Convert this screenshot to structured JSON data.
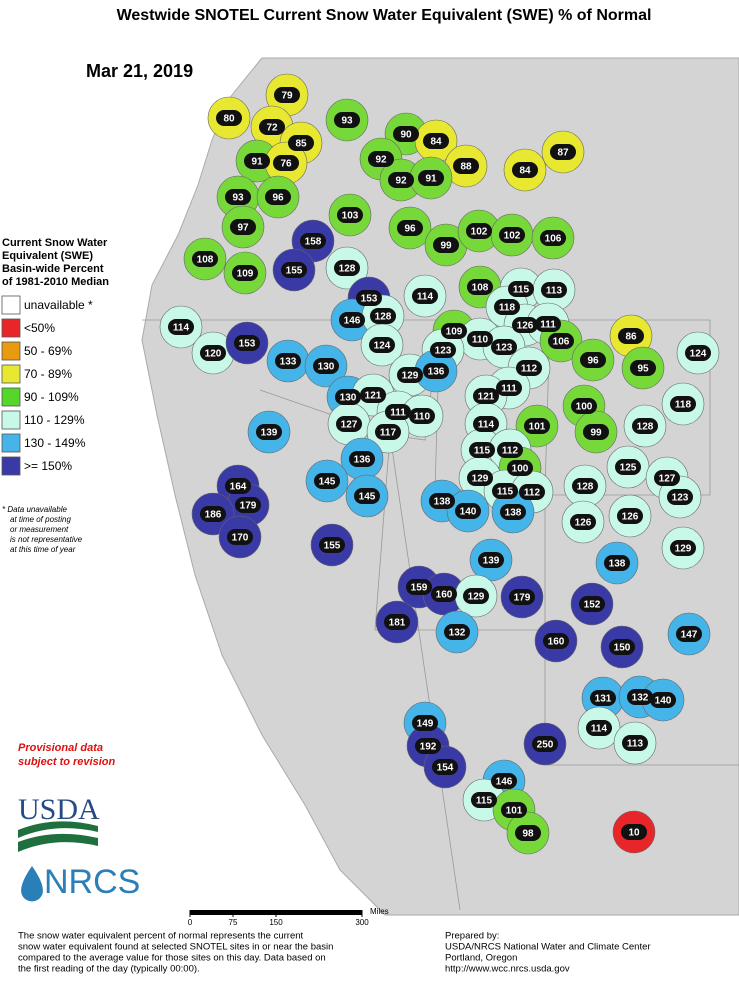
{
  "title": "Westwide SNOTEL Current Snow Water Equivalent (SWE) % of Normal",
  "date": "Mar 21, 2019",
  "legend": {
    "title_lines": [
      "Current Snow Water",
      "Equivalent (SWE)",
      "Basin-wide Percent",
      "of 1981-2010 Median"
    ],
    "items": [
      {
        "label": "unavailable *",
        "color": "#ffffff"
      },
      {
        "label": "<50%",
        "color": "#e8262a"
      },
      {
        "label": "50 - 69%",
        "color": "#e89a10"
      },
      {
        "label": "70 - 89%",
        "color": "#e8e830"
      },
      {
        "label": "90 - 109%",
        "color": "#55d62a"
      },
      {
        "label": "110 - 129%",
        "color": "#c8f8e8"
      },
      {
        "label": "130 - 149%",
        "color": "#45b4e8"
      },
      {
        "label": ">= 150%",
        "color": "#3a3aa6"
      }
    ]
  },
  "footnote_lines": [
    "* Data unavailable",
    "at time of posting",
    "or measurement",
    "is not representative",
    "at this time of year"
  ],
  "provisional_lines": [
    "Provisional data",
    "subject to revision"
  ],
  "logos": {
    "usda": "USDA",
    "nrcs": "NRCS"
  },
  "scale": {
    "unit": "Miles",
    "ticks": [
      0,
      75,
      150,
      300
    ]
  },
  "description_lines": [
    "The snow water equivalent percent of normal represents the current",
    "snow water equivalent found at selected SNOTEL sites in or near the basin",
    "compared to the average value for those sites on this day. Data based on",
    "the first reading of the day (typically 00:00)."
  ],
  "prepared_lines": [
    "Prepared by:",
    "USDA/NRCS National Water and Climate Center",
    "Portland, Oregon",
    "http://www.wcc.nrcs.usda.gov"
  ],
  "basins": [
    {
      "value": 80,
      "color": "#e8e830"
    },
    {
      "value": 79,
      "color": "#e8e830"
    },
    {
      "value": 72,
      "color": "#e8e830"
    },
    {
      "value": 85,
      "color": "#e8e830"
    },
    {
      "value": 93,
      "color": "#77d83a"
    },
    {
      "value": 90,
      "color": "#77d83a"
    },
    {
      "value": 84,
      "color": "#e8e830"
    },
    {
      "value": 87,
      "color": "#e8e830"
    },
    {
      "value": 88,
      "color": "#e8e830"
    },
    {
      "value": 84,
      "color": "#e8e830"
    },
    {
      "value": 92,
      "color": "#77d83a"
    },
    {
      "value": 92,
      "color": "#77d83a"
    },
    {
      "value": 91,
      "color": "#77d83a"
    },
    {
      "value": 91,
      "color": "#77d83a"
    },
    {
      "value": 76,
      "color": "#e8e830"
    },
    {
      "value": 93,
      "color": "#77d83a"
    },
    {
      "value": 96,
      "color": "#77d83a"
    },
    {
      "value": 103,
      "color": "#77d83a"
    },
    {
      "value": 97,
      "color": "#77d83a"
    },
    {
      "value": 158,
      "color": "#3a3aa6"
    },
    {
      "value": 96,
      "color": "#77d83a"
    },
    {
      "value": 99,
      "color": "#77d83a"
    },
    {
      "value": 102,
      "color": "#77d83a"
    },
    {
      "value": 102,
      "color": "#77d83a"
    },
    {
      "value": 106,
      "color": "#77d83a"
    },
    {
      "value": 108,
      "color": "#77d83a"
    },
    {
      "value": 109,
      "color": "#77d83a"
    },
    {
      "value": 155,
      "color": "#3a3aa6"
    },
    {
      "value": 128,
      "color": "#c8f8e8"
    },
    {
      "value": 153,
      "color": "#3a3aa6"
    },
    {
      "value": 114,
      "color": "#c8f8e8"
    },
    {
      "value": 108,
      "color": "#77d83a"
    },
    {
      "value": 115,
      "color": "#c8f8e8"
    },
    {
      "value": 113,
      "color": "#c8f8e8"
    },
    {
      "value": 118,
      "color": "#c8f8e8"
    },
    {
      "value": 114,
      "color": "#c8f8e8"
    },
    {
      "value": 146,
      "color": "#45b4e8"
    },
    {
      "value": 128,
      "color": "#c8f8e8"
    },
    {
      "value": 126,
      "color": "#c8f8e8"
    },
    {
      "value": 111,
      "color": "#c8f8e8"
    },
    {
      "value": 120,
      "color": "#c8f8e8"
    },
    {
      "value": 153,
      "color": "#3a3aa6"
    },
    {
      "value": 133,
      "color": "#45b4e8"
    },
    {
      "value": 124,
      "color": "#c8f8e8"
    },
    {
      "value": 109,
      "color": "#77d83a"
    },
    {
      "value": 110,
      "color": "#c8f8e8"
    },
    {
      "value": 123,
      "color": "#c8f8e8"
    },
    {
      "value": 123,
      "color": "#c8f8e8"
    },
    {
      "value": 106,
      "color": "#77d83a"
    },
    {
      "value": 86,
      "color": "#e8e830"
    },
    {
      "value": 124,
      "color": "#c8f8e8"
    },
    {
      "value": 96,
      "color": "#77d83a"
    },
    {
      "value": 95,
      "color": "#77d83a"
    },
    {
      "value": 130,
      "color": "#45b4e8"
    },
    {
      "value": 129,
      "color": "#c8f8e8"
    },
    {
      "value": 136,
      "color": "#45b4e8"
    },
    {
      "value": 112,
      "color": "#c8f8e8"
    },
    {
      "value": 111,
      "color": "#c8f8e8"
    },
    {
      "value": 121,
      "color": "#c8f8e8"
    },
    {
      "value": 130,
      "color": "#45b4e8"
    },
    {
      "value": 121,
      "color": "#c8f8e8"
    },
    {
      "value": 111,
      "color": "#c8f8e8"
    },
    {
      "value": 110,
      "color": "#c8f8e8"
    },
    {
      "value": 100,
      "color": "#77d83a"
    },
    {
      "value": 118,
      "color": "#c8f8e8"
    },
    {
      "value": 139,
      "color": "#45b4e8"
    },
    {
      "value": 127,
      "color": "#c8f8e8"
    },
    {
      "value": 117,
      "color": "#c8f8e8"
    },
    {
      "value": 114,
      "color": "#c8f8e8"
    },
    {
      "value": 101,
      "color": "#77d83a"
    },
    {
      "value": 99,
      "color": "#77d83a"
    },
    {
      "value": 128,
      "color": "#c8f8e8"
    },
    {
      "value": 136,
      "color": "#45b4e8"
    },
    {
      "value": 115,
      "color": "#c8f8e8"
    },
    {
      "value": 112,
      "color": "#c8f8e8"
    },
    {
      "value": 125,
      "color": "#c8f8e8"
    },
    {
      "value": 127,
      "color": "#c8f8e8"
    },
    {
      "value": 145,
      "color": "#45b4e8"
    },
    {
      "value": 100,
      "color": "#77d83a"
    },
    {
      "value": 129,
      "color": "#c8f8e8"
    },
    {
      "value": 164,
      "color": "#3a3aa6"
    },
    {
      "value": 179,
      "color": "#3a3aa6"
    },
    {
      "value": 145,
      "color": "#45b4e8"
    },
    {
      "value": 115,
      "color": "#c8f8e8"
    },
    {
      "value": 112,
      "color": "#c8f8e8"
    },
    {
      "value": 128,
      "color": "#c8f8e8"
    },
    {
      "value": 123,
      "color": "#c8f8e8"
    },
    {
      "value": 138,
      "color": "#45b4e8"
    },
    {
      "value": 186,
      "color": "#3a3aa6"
    },
    {
      "value": 140,
      "color": "#45b4e8"
    },
    {
      "value": 138,
      "color": "#45b4e8"
    },
    {
      "value": 126,
      "color": "#c8f8e8"
    },
    {
      "value": 126,
      "color": "#c8f8e8"
    },
    {
      "value": 170,
      "color": "#3a3aa6"
    },
    {
      "value": 155,
      "color": "#3a3aa6"
    },
    {
      "value": 129,
      "color": "#c8f8e8"
    },
    {
      "value": 139,
      "color": "#45b4e8"
    },
    {
      "value": 138,
      "color": "#45b4e8"
    },
    {
      "value": 159,
      "color": "#3a3aa6"
    },
    {
      "value": 160,
      "color": "#3a3aa6"
    },
    {
      "value": 129,
      "color": "#c8f8e8"
    },
    {
      "value": 179,
      "color": "#3a3aa6"
    },
    {
      "value": 152,
      "color": "#3a3aa6"
    },
    {
      "value": 181,
      "color": "#3a3aa6"
    },
    {
      "value": 132,
      "color": "#45b4e8"
    },
    {
      "value": 160,
      "color": "#3a3aa6"
    },
    {
      "value": 150,
      "color": "#3a3aa6"
    },
    {
      "value": 147,
      "color": "#45b4e8"
    },
    {
      "value": 131,
      "color": "#45b4e8"
    },
    {
      "value": 132,
      "color": "#45b4e8"
    },
    {
      "value": 140,
      "color": "#45b4e8"
    },
    {
      "value": 149,
      "color": "#45b4e8"
    },
    {
      "value": 114,
      "color": "#c8f8e8"
    },
    {
      "value": 192,
      "color": "#3a3aa6"
    },
    {
      "value": 250,
      "color": "#3a3aa6"
    },
    {
      "value": 113,
      "color": "#c8f8e8"
    },
    {
      "value": 154,
      "color": "#3a3aa6"
    },
    {
      "value": 146,
      "color": "#45b4e8"
    },
    {
      "value": 115,
      "color": "#c8f8e8"
    },
    {
      "value": 101,
      "color": "#77d83a"
    },
    {
      "value": 98,
      "color": "#77d83a"
    },
    {
      "value": 10,
      "color": "#e8262a"
    }
  ]
}
